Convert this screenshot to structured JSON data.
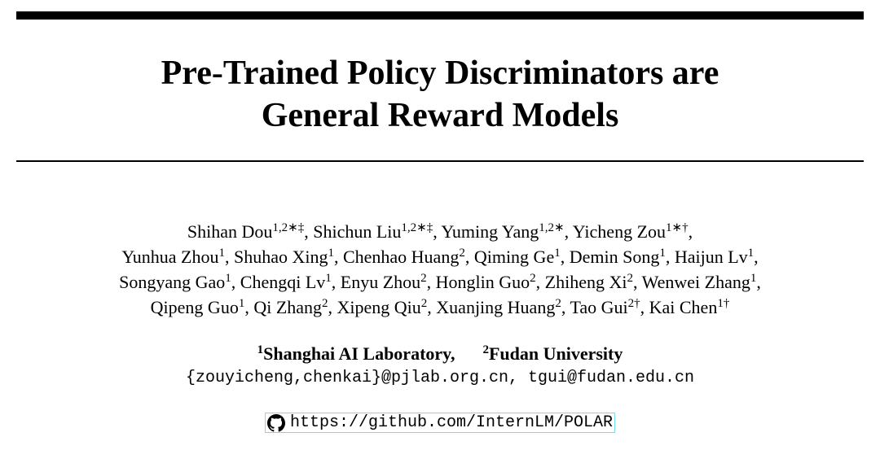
{
  "title": [
    "Pre-Trained Policy Discriminators are",
    "General Reward Models"
  ],
  "authors": [
    [
      {
        "name": "Shihan Dou",
        "sup": "1,2∗‡",
        "after": ","
      },
      {
        "name": "Shichun Liu",
        "sup": "1,2∗‡",
        "after": ","
      },
      {
        "name": "Yuming Yang",
        "sup": "1,2∗",
        "after": ","
      },
      {
        "name": "Yicheng Zou",
        "sup": "1∗†",
        "after": ","
      }
    ],
    [
      {
        "name": "Yunhua Zhou",
        "sup": "1",
        "after": ","
      },
      {
        "name": "Shuhao Xing",
        "sup": "1",
        "after": ","
      },
      {
        "name": "Chenhao Huang",
        "sup": "2",
        "after": ","
      },
      {
        "name": "Qiming Ge",
        "sup": "1",
        "after": ","
      },
      {
        "name": "Demin Song",
        "sup": "1",
        "after": ","
      },
      {
        "name": "Haijun Lv",
        "sup": "1",
        "after": ","
      }
    ],
    [
      {
        "name": "Songyang Gao",
        "sup": "1",
        "after": ","
      },
      {
        "name": "Chengqi Lv",
        "sup": "1",
        "after": ","
      },
      {
        "name": "Enyu Zhou",
        "sup": "2",
        "after": ","
      },
      {
        "name": "Honglin Guo",
        "sup": "2",
        "after": ","
      },
      {
        "name": "Zhiheng Xi",
        "sup": "2",
        "after": ","
      },
      {
        "name": "Wenwei Zhang",
        "sup": "1",
        "after": ","
      }
    ],
    [
      {
        "name": "Qipeng Guo",
        "sup": "1",
        "after": ","
      },
      {
        "name": "Qi Zhang",
        "sup": "2",
        "after": ","
      },
      {
        "name": "Xipeng Qiu",
        "sup": "2",
        "after": ","
      },
      {
        "name": "Xuanjing Huang",
        "sup": "2",
        "after": ","
      },
      {
        "name": "Tao Gui",
        "sup": "2†",
        "after": ","
      },
      {
        "name": "Kai Chen",
        "sup": "1†"
      }
    ]
  ],
  "affiliations": [
    {
      "sup": "1",
      "name": "Shanghai AI Laboratory,"
    },
    {
      "sup": "2",
      "name": "Fudan University"
    }
  ],
  "emails": "{zouyicheng,chenkai}@pjlab.org.cn, tgui@fudan.edu.cn",
  "link": "https://github.com/InternLM/POLAR"
}
